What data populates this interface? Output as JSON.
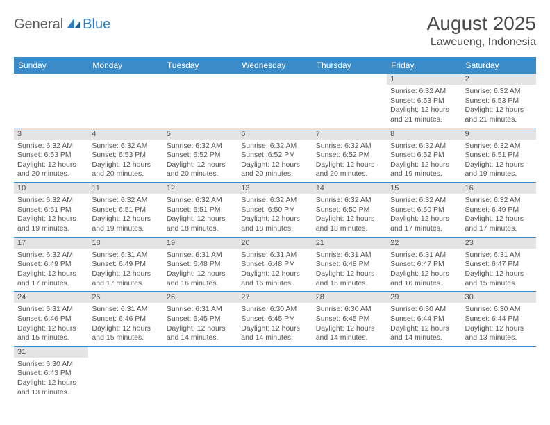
{
  "logo": {
    "general": "General",
    "blue": "Blue"
  },
  "title": "August 2025",
  "location": "Laweueng, Indonesia",
  "colors": {
    "header_bg": "#3b8bc9",
    "header_text": "#ffffff",
    "daynum_bg": "#e4e4e4",
    "border": "#3b8bc9",
    "text": "#555555",
    "logo_gray": "#5a5a5a",
    "logo_blue": "#2f7dc0"
  },
  "weekdays": [
    "Sunday",
    "Monday",
    "Tuesday",
    "Wednesday",
    "Thursday",
    "Friday",
    "Saturday"
  ],
  "weeks": [
    [
      {
        "empty": true
      },
      {
        "empty": true
      },
      {
        "empty": true
      },
      {
        "empty": true
      },
      {
        "empty": true
      },
      {
        "day": "1",
        "sunrise": "Sunrise: 6:32 AM",
        "sunset": "Sunset: 6:53 PM",
        "daylight": "Daylight: 12 hours and 21 minutes."
      },
      {
        "day": "2",
        "sunrise": "Sunrise: 6:32 AM",
        "sunset": "Sunset: 6:53 PM",
        "daylight": "Daylight: 12 hours and 21 minutes."
      }
    ],
    [
      {
        "day": "3",
        "sunrise": "Sunrise: 6:32 AM",
        "sunset": "Sunset: 6:53 PM",
        "daylight": "Daylight: 12 hours and 20 minutes."
      },
      {
        "day": "4",
        "sunrise": "Sunrise: 6:32 AM",
        "sunset": "Sunset: 6:53 PM",
        "daylight": "Daylight: 12 hours and 20 minutes."
      },
      {
        "day": "5",
        "sunrise": "Sunrise: 6:32 AM",
        "sunset": "Sunset: 6:52 PM",
        "daylight": "Daylight: 12 hours and 20 minutes."
      },
      {
        "day": "6",
        "sunrise": "Sunrise: 6:32 AM",
        "sunset": "Sunset: 6:52 PM",
        "daylight": "Daylight: 12 hours and 20 minutes."
      },
      {
        "day": "7",
        "sunrise": "Sunrise: 6:32 AM",
        "sunset": "Sunset: 6:52 PM",
        "daylight": "Daylight: 12 hours and 20 minutes."
      },
      {
        "day": "8",
        "sunrise": "Sunrise: 6:32 AM",
        "sunset": "Sunset: 6:52 PM",
        "daylight": "Daylight: 12 hours and 19 minutes."
      },
      {
        "day": "9",
        "sunrise": "Sunrise: 6:32 AM",
        "sunset": "Sunset: 6:51 PM",
        "daylight": "Daylight: 12 hours and 19 minutes."
      }
    ],
    [
      {
        "day": "10",
        "sunrise": "Sunrise: 6:32 AM",
        "sunset": "Sunset: 6:51 PM",
        "daylight": "Daylight: 12 hours and 19 minutes."
      },
      {
        "day": "11",
        "sunrise": "Sunrise: 6:32 AM",
        "sunset": "Sunset: 6:51 PM",
        "daylight": "Daylight: 12 hours and 19 minutes."
      },
      {
        "day": "12",
        "sunrise": "Sunrise: 6:32 AM",
        "sunset": "Sunset: 6:51 PM",
        "daylight": "Daylight: 12 hours and 18 minutes."
      },
      {
        "day": "13",
        "sunrise": "Sunrise: 6:32 AM",
        "sunset": "Sunset: 6:50 PM",
        "daylight": "Daylight: 12 hours and 18 minutes."
      },
      {
        "day": "14",
        "sunrise": "Sunrise: 6:32 AM",
        "sunset": "Sunset: 6:50 PM",
        "daylight": "Daylight: 12 hours and 18 minutes."
      },
      {
        "day": "15",
        "sunrise": "Sunrise: 6:32 AM",
        "sunset": "Sunset: 6:50 PM",
        "daylight": "Daylight: 12 hours and 17 minutes."
      },
      {
        "day": "16",
        "sunrise": "Sunrise: 6:32 AM",
        "sunset": "Sunset: 6:49 PM",
        "daylight": "Daylight: 12 hours and 17 minutes."
      }
    ],
    [
      {
        "day": "17",
        "sunrise": "Sunrise: 6:32 AM",
        "sunset": "Sunset: 6:49 PM",
        "daylight": "Daylight: 12 hours and 17 minutes."
      },
      {
        "day": "18",
        "sunrise": "Sunrise: 6:31 AM",
        "sunset": "Sunset: 6:49 PM",
        "daylight": "Daylight: 12 hours and 17 minutes."
      },
      {
        "day": "19",
        "sunrise": "Sunrise: 6:31 AM",
        "sunset": "Sunset: 6:48 PM",
        "daylight": "Daylight: 12 hours and 16 minutes."
      },
      {
        "day": "20",
        "sunrise": "Sunrise: 6:31 AM",
        "sunset": "Sunset: 6:48 PM",
        "daylight": "Daylight: 12 hours and 16 minutes."
      },
      {
        "day": "21",
        "sunrise": "Sunrise: 6:31 AM",
        "sunset": "Sunset: 6:48 PM",
        "daylight": "Daylight: 12 hours and 16 minutes."
      },
      {
        "day": "22",
        "sunrise": "Sunrise: 6:31 AM",
        "sunset": "Sunset: 6:47 PM",
        "daylight": "Daylight: 12 hours and 16 minutes."
      },
      {
        "day": "23",
        "sunrise": "Sunrise: 6:31 AM",
        "sunset": "Sunset: 6:47 PM",
        "daylight": "Daylight: 12 hours and 15 minutes."
      }
    ],
    [
      {
        "day": "24",
        "sunrise": "Sunrise: 6:31 AM",
        "sunset": "Sunset: 6:46 PM",
        "daylight": "Daylight: 12 hours and 15 minutes."
      },
      {
        "day": "25",
        "sunrise": "Sunrise: 6:31 AM",
        "sunset": "Sunset: 6:46 PM",
        "daylight": "Daylight: 12 hours and 15 minutes."
      },
      {
        "day": "26",
        "sunrise": "Sunrise: 6:31 AM",
        "sunset": "Sunset: 6:45 PM",
        "daylight": "Daylight: 12 hours and 14 minutes."
      },
      {
        "day": "27",
        "sunrise": "Sunrise: 6:30 AM",
        "sunset": "Sunset: 6:45 PM",
        "daylight": "Daylight: 12 hours and 14 minutes."
      },
      {
        "day": "28",
        "sunrise": "Sunrise: 6:30 AM",
        "sunset": "Sunset: 6:45 PM",
        "daylight": "Daylight: 12 hours and 14 minutes."
      },
      {
        "day": "29",
        "sunrise": "Sunrise: 6:30 AM",
        "sunset": "Sunset: 6:44 PM",
        "daylight": "Daylight: 12 hours and 14 minutes."
      },
      {
        "day": "30",
        "sunrise": "Sunrise: 6:30 AM",
        "sunset": "Sunset: 6:44 PM",
        "daylight": "Daylight: 12 hours and 13 minutes."
      }
    ],
    [
      {
        "day": "31",
        "sunrise": "Sunrise: 6:30 AM",
        "sunset": "Sunset: 6:43 PM",
        "daylight": "Daylight: 12 hours and 13 minutes."
      },
      {
        "empty": true
      },
      {
        "empty": true
      },
      {
        "empty": true
      },
      {
        "empty": true
      },
      {
        "empty": true
      },
      {
        "empty": true
      }
    ]
  ]
}
